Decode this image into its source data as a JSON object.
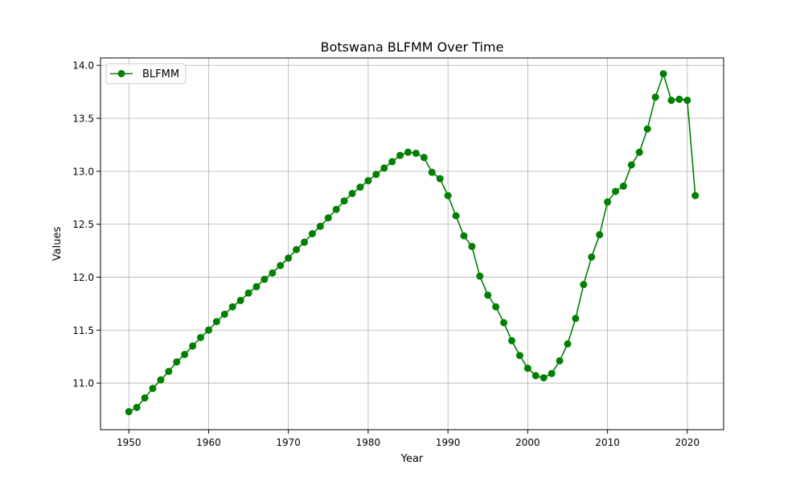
{
  "chart_data": {
    "type": "line",
    "title": "Botswana BLFMM Over Time",
    "xlabel": "Year",
    "ylabel": "Values",
    "xlim": [
      1946.45,
      2024.55
    ],
    "ylim": [
      10.56,
      14.07
    ],
    "x_ticks": [
      1950,
      1960,
      1970,
      1980,
      1990,
      2000,
      2010,
      2020
    ],
    "y_ticks": [
      11.0,
      11.5,
      12.0,
      12.5,
      13.0,
      13.5,
      14.0
    ],
    "x_tick_labels": [
      "1950",
      "1960",
      "1970",
      "1980",
      "1990",
      "2000",
      "2010",
      "2020"
    ],
    "y_tick_labels": [
      "11.0",
      "11.5",
      "12.0",
      "12.5",
      "13.0",
      "13.5",
      "14.0"
    ],
    "grid": true,
    "legend_position": "top-left",
    "series": [
      {
        "name": "BLFMM",
        "color": "#008000",
        "marker": "circle",
        "x": [
          1950,
          1951,
          1952,
          1953,
          1954,
          1955,
          1956,
          1957,
          1958,
          1959,
          1960,
          1961,
          1962,
          1963,
          1964,
          1965,
          1966,
          1967,
          1968,
          1969,
          1970,
          1971,
          1972,
          1973,
          1974,
          1975,
          1976,
          1977,
          1978,
          1979,
          1980,
          1981,
          1982,
          1983,
          1984,
          1985,
          1986,
          1987,
          1988,
          1989,
          1990,
          1991,
          1992,
          1993,
          1994,
          1995,
          1996,
          1997,
          1998,
          1999,
          2000,
          2001,
          2002,
          2003,
          2004,
          2005,
          2006,
          2007,
          2008,
          2009,
          2010,
          2011,
          2012,
          2013,
          2014,
          2015,
          2016,
          2017,
          2018,
          2019,
          2020,
          2021
        ],
        "y": [
          10.73,
          10.77,
          10.86,
          10.95,
          11.03,
          11.11,
          11.2,
          11.27,
          11.35,
          11.43,
          11.5,
          11.58,
          11.65,
          11.72,
          11.78,
          11.85,
          11.91,
          11.98,
          12.04,
          12.11,
          12.18,
          12.26,
          12.33,
          12.41,
          12.48,
          12.56,
          12.64,
          12.72,
          12.79,
          12.85,
          12.91,
          12.97,
          13.03,
          13.09,
          13.15,
          13.18,
          13.17,
          13.13,
          12.99,
          12.93,
          12.77,
          12.58,
          12.39,
          12.29,
          12.01,
          11.83,
          11.72,
          11.57,
          11.4,
          11.26,
          11.14,
          11.07,
          11.05,
          11.09,
          11.21,
          11.37,
          11.61,
          11.93,
          12.19,
          12.4,
          12.71,
          12.81,
          12.86,
          13.06,
          13.18,
          13.4,
          13.7,
          13.92,
          13.67,
          13.68,
          13.67,
          12.77
        ]
      }
    ]
  }
}
